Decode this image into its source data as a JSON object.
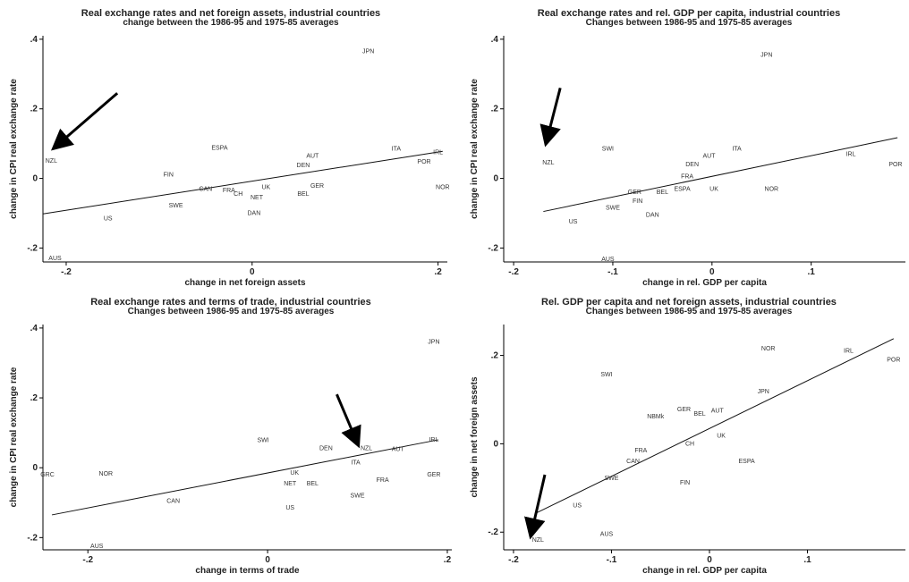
{
  "chart_data": [
    {
      "type": "scatter",
      "title": "Real exchange rates and net foreign assets, industrial countries",
      "subtitle": "change between the 1986-95 and 1975-85 averages",
      "xlabel": "change in net foreign assets",
      "ylabel": "change in CPI real exchange rate",
      "xlim": [
        -0.225,
        0.21
      ],
      "ylim": [
        -0.24,
        0.41
      ],
      "xticks": [
        -0.2,
        0,
        0.2
      ],
      "xtick_labels": [
        "-.2",
        "0",
        ".2"
      ],
      "yticks": [
        -0.2,
        0,
        0.2,
        0.4
      ],
      "ytick_labels": [
        "-.2",
        "0",
        ".2",
        ".4"
      ],
      "fit_line": [
        [
          -0.225,
          -0.102
        ],
        [
          0.205,
          0.078
        ]
      ],
      "arrow": {
        "from": [
          -0.145,
          0.245
        ],
        "to": [
          -0.212,
          0.09
        ]
      },
      "points": [
        {
          "label": "JPN",
          "x": 0.125,
          "y": 0.365
        },
        {
          "label": "NZL",
          "x": -0.216,
          "y": 0.05
        },
        {
          "label": "AUS",
          "x": -0.212,
          "y": -0.23
        },
        {
          "label": "US",
          "x": -0.155,
          "y": -0.115
        },
        {
          "label": "SWE",
          "x": -0.082,
          "y": -0.078
        },
        {
          "label": "FIN",
          "x": -0.09,
          "y": 0.01
        },
        {
          "label": "ESPA",
          "x": -0.035,
          "y": 0.087
        },
        {
          "label": "CAN",
          "x": -0.05,
          "y": -0.03
        },
        {
          "label": "FRA",
          "x": -0.025,
          "y": -0.035
        },
        {
          "label": "CH",
          "x": -0.015,
          "y": -0.045
        },
        {
          "label": "UK",
          "x": 0.015,
          "y": -0.025
        },
        {
          "label": "NET",
          "x": 0.005,
          "y": -0.055
        },
        {
          "label": "DAN",
          "x": 0.002,
          "y": -0.1
        },
        {
          "label": "BEL",
          "x": 0.055,
          "y": -0.045
        },
        {
          "label": "GER",
          "x": 0.07,
          "y": -0.022
        },
        {
          "label": "AUT",
          "x": 0.065,
          "y": 0.065
        },
        {
          "label": "DEN",
          "x": 0.055,
          "y": 0.038
        },
        {
          "label": "ITA",
          "x": 0.155,
          "y": 0.085
        },
        {
          "label": "POR",
          "x": 0.185,
          "y": 0.048
        },
        {
          "label": "IRL",
          "x": 0.2,
          "y": 0.075
        },
        {
          "label": "NOR",
          "x": 0.205,
          "y": -0.025
        }
      ]
    },
    {
      "type": "scatter",
      "title": "Real exchange rates and rel. GDP per capita, industrial countries",
      "subtitle": "Changes between 1986-95 and 1975-85 averages",
      "xlabel": "change in rel. GDP per capita",
      "ylabel": "change in CPI real exchange rate",
      "xlim": [
        -0.21,
        0.195
      ],
      "ylim": [
        -0.24,
        0.41
      ],
      "xticks": [
        -0.2,
        -0.1,
        0,
        0.1
      ],
      "xtick_labels": [
        "-.2",
        "-.1",
        "0",
        ".1"
      ],
      "yticks": [
        -0.2,
        0,
        0.2,
        0.4
      ],
      "ytick_labels": [
        "-.2",
        "0",
        ".2",
        ".4"
      ],
      "fit_line": [
        [
          -0.17,
          -0.095
        ],
        [
          0.187,
          0.117
        ]
      ],
      "arrow": {
        "from": [
          -0.153,
          0.26
        ],
        "to": [
          -0.167,
          0.105
        ]
      },
      "points": [
        {
          "label": "JPN",
          "x": 0.055,
          "y": 0.355
        },
        {
          "label": "NZL",
          "x": -0.165,
          "y": 0.045
        },
        {
          "label": "SWI",
          "x": -0.105,
          "y": 0.085
        },
        {
          "label": "US",
          "x": -0.14,
          "y": -0.125
        },
        {
          "label": "AUS",
          "x": -0.105,
          "y": -0.232
        },
        {
          "label": "SWE",
          "x": -0.1,
          "y": -0.085
        },
        {
          "label": "DAN",
          "x": -0.06,
          "y": -0.105
        },
        {
          "label": "FIN",
          "x": -0.075,
          "y": -0.065
        },
        {
          "label": "GER",
          "x": -0.078,
          "y": -0.04
        },
        {
          "label": "BEL",
          "x": -0.05,
          "y": -0.04
        },
        {
          "label": "ESPA",
          "x": -0.03,
          "y": -0.03
        },
        {
          "label": "UK",
          "x": 0.002,
          "y": -0.03
        },
        {
          "label": "DEN",
          "x": -0.02,
          "y": 0.04
        },
        {
          "label": "FRA",
          "x": -0.025,
          "y": 0.005
        },
        {
          "label": "AUT",
          "x": -0.003,
          "y": 0.065
        },
        {
          "label": "ITA",
          "x": 0.025,
          "y": 0.085
        },
        {
          "label": "NOR",
          "x": 0.06,
          "y": -0.03
        },
        {
          "label": "IRL",
          "x": 0.14,
          "y": 0.07
        },
        {
          "label": "POR",
          "x": 0.185,
          "y": 0.04
        }
      ]
    },
    {
      "type": "scatter",
      "title": "Real exchange rates and terms of trade, industrial countries",
      "subtitle": "Changes between 1986-95 and 1975-85 averages",
      "xlabel": "change in terms of trade",
      "ylabel": "change in CPI real exchange rate",
      "xlim": [
        -0.25,
        0.205
      ],
      "ylim": [
        -0.235,
        0.41
      ],
      "xticks": [
        -0.2,
        0,
        0.2
      ],
      "xtick_labels": [
        "-.2",
        "0",
        ".2"
      ],
      "yticks": [
        -0.2,
        0,
        0.2,
        0.4
      ],
      "ytick_labels": [
        "-.2",
        "0",
        ".2",
        ".4"
      ],
      "fit_line": [
        [
          -0.24,
          -0.135
        ],
        [
          0.19,
          0.08
        ]
      ],
      "arrow": {
        "from": [
          0.077,
          0.21
        ],
        "to": [
          0.1,
          0.07
        ]
      },
      "points": [
        {
          "label": "JPN",
          "x": 0.185,
          "y": 0.36
        },
        {
          "label": "GRC",
          "x": -0.245,
          "y": -0.02
        },
        {
          "label": "NOR",
          "x": -0.18,
          "y": -0.018
        },
        {
          "label": "AUS",
          "x": -0.19,
          "y": -0.225
        },
        {
          "label": "CAN",
          "x": -0.105,
          "y": -0.095
        },
        {
          "label": "SWI",
          "x": -0.005,
          "y": 0.078
        },
        {
          "label": "DEN",
          "x": 0.065,
          "y": 0.055
        },
        {
          "label": "NZL",
          "x": 0.11,
          "y": 0.055
        },
        {
          "label": "ITA",
          "x": 0.098,
          "y": 0.015
        },
        {
          "label": "UK",
          "x": 0.03,
          "y": -0.015
        },
        {
          "label": "NET",
          "x": 0.025,
          "y": -0.045
        },
        {
          "label": "BEL",
          "x": 0.05,
          "y": -0.045
        },
        {
          "label": "FRA",
          "x": 0.128,
          "y": -0.035
        },
        {
          "label": "SWE",
          "x": 0.1,
          "y": -0.08
        },
        {
          "label": "US",
          "x": 0.025,
          "y": -0.115
        },
        {
          "label": "GER",
          "x": 0.185,
          "y": -0.02
        },
        {
          "label": "AUT",
          "x": 0.145,
          "y": 0.053
        },
        {
          "label": "IRL",
          "x": 0.185,
          "y": 0.08
        }
      ]
    },
    {
      "type": "scatter",
      "title": "Rel. GDP per capita and net foreign assets, industrial countries",
      "subtitle": "Changes between 1986-95 and 1975-85 averages",
      "xlabel": "change in rel. GDP per capita",
      "ylabel": "change in net foreign assets",
      "xlim": [
        -0.21,
        0.2
      ],
      "ylim": [
        -0.24,
        0.27
      ],
      "xticks": [
        -0.2,
        -0.1,
        0,
        0.1
      ],
      "xtick_labels": [
        "-.2",
        "-.1",
        "0",
        ".1"
      ],
      "yticks": [
        -0.2,
        0,
        0.2
      ],
      "ytick_labels": [
        "-.2",
        "0",
        ".2"
      ],
      "fit_line": [
        [
          -0.178,
          -0.158
        ],
        [
          0.188,
          0.238
        ]
      ],
      "arrow": {
        "from": [
          -0.168,
          -0.07
        ],
        "to": [
          -0.182,
          -0.205
        ]
      },
      "points": [
        {
          "label": "NOR",
          "x": 0.06,
          "y": 0.215
        },
        {
          "label": "IRL",
          "x": 0.142,
          "y": 0.21
        },
        {
          "label": "POR",
          "x": 0.188,
          "y": 0.19
        },
        {
          "label": "SWI",
          "x": -0.105,
          "y": 0.157
        },
        {
          "label": "JPN",
          "x": 0.055,
          "y": 0.118
        },
        {
          "label": "GER",
          "x": -0.026,
          "y": 0.078
        },
        {
          "label": "BEL",
          "x": -0.01,
          "y": 0.068
        },
        {
          "label": "AUT",
          "x": 0.008,
          "y": 0.075
        },
        {
          "label": "NBMk",
          "x": -0.055,
          "y": 0.062
        },
        {
          "label": "UK",
          "x": 0.012,
          "y": 0.018
        },
        {
          "label": "CH",
          "x": -0.02,
          "y": 0.0
        },
        {
          "label": "FRA",
          "x": -0.07,
          "y": -0.015
        },
        {
          "label": "CAN",
          "x": -0.078,
          "y": -0.04
        },
        {
          "label": "SWE",
          "x": -0.1,
          "y": -0.078
        },
        {
          "label": "FIN",
          "x": -0.025,
          "y": -0.088
        },
        {
          "label": "ESPA",
          "x": 0.038,
          "y": -0.04
        },
        {
          "label": "US",
          "x": -0.135,
          "y": -0.14
        },
        {
          "label": "AUS",
          "x": -0.105,
          "y": -0.205
        },
        {
          "label": "NZL",
          "x": -0.175,
          "y": -0.218
        }
      ]
    }
  ]
}
